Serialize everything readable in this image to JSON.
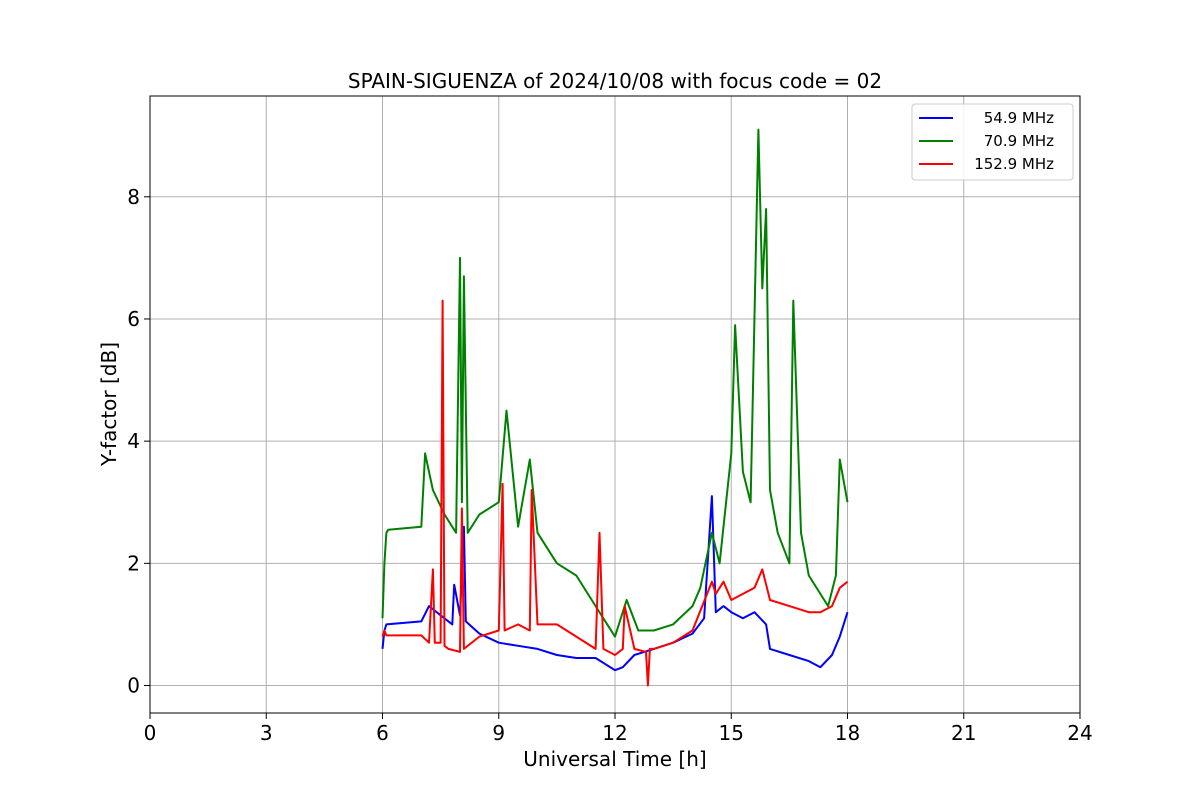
{
  "chart_data": {
    "type": "line",
    "title": "SPAIN-SIGUENZA of 2024/10/08 with focus code = 02",
    "xlabel": "Universal Time [h]",
    "ylabel": "Y-factor [dB]",
    "xlim": [
      0,
      24
    ],
    "ylim": [
      -0.45,
      9.65
    ],
    "xticks": [
      0,
      3,
      6,
      9,
      12,
      15,
      18,
      21,
      24
    ],
    "yticks": [
      0,
      2,
      4,
      6,
      8
    ],
    "grid": true,
    "legend_position": "top-right",
    "series": [
      {
        "name": "54.9 MHz",
        "color": "#0000ff",
        "x": [
          6.0,
          6.05,
          6.1,
          7.0,
          7.2,
          7.5,
          7.8,
          7.85,
          8.0,
          8.1,
          8.15,
          8.5,
          9.0,
          9.5,
          10.0,
          10.5,
          11.0,
          11.5,
          12.0,
          12.2,
          12.5,
          13.0,
          13.5,
          14.0,
          14.3,
          14.5,
          14.6,
          14.8,
          15.0,
          15.3,
          15.6,
          15.9,
          16.0,
          16.5,
          17.0,
          17.3,
          17.6,
          17.8,
          18.0
        ],
        "y": [
          0.6,
          0.9,
          1.0,
          1.05,
          1.3,
          1.15,
          1.0,
          1.65,
          1.15,
          2.6,
          1.05,
          0.85,
          0.7,
          0.65,
          0.6,
          0.5,
          0.45,
          0.45,
          0.25,
          0.3,
          0.5,
          0.6,
          0.7,
          0.85,
          1.1,
          3.1,
          1.2,
          1.3,
          1.2,
          1.1,
          1.2,
          1.0,
          0.6,
          0.5,
          0.4,
          0.3,
          0.5,
          0.8,
          1.2
        ]
      },
      {
        "name": "70.9 MHz",
        "color": "#008000",
        "x": [
          6.0,
          6.05,
          6.1,
          6.15,
          7.0,
          7.1,
          7.3,
          7.6,
          7.9,
          8.0,
          8.05,
          8.1,
          8.2,
          8.5,
          9.0,
          9.2,
          9.5,
          9.8,
          10.0,
          10.5,
          11.0,
          11.5,
          12.0,
          12.3,
          12.6,
          13.0,
          13.5,
          14.0,
          14.2,
          14.5,
          14.7,
          15.0,
          15.1,
          15.3,
          15.5,
          15.7,
          15.8,
          15.9,
          16.0,
          16.2,
          16.5,
          16.6,
          16.8,
          17.0,
          17.3,
          17.5,
          17.7,
          17.8,
          18.0
        ],
        "y": [
          1.1,
          2.0,
          2.5,
          2.55,
          2.6,
          3.8,
          3.2,
          2.8,
          2.5,
          7.0,
          3.0,
          6.7,
          2.5,
          2.8,
          3.0,
          4.5,
          2.6,
          3.7,
          2.5,
          2.0,
          1.8,
          1.3,
          0.8,
          1.4,
          0.9,
          0.9,
          1.0,
          1.3,
          1.6,
          2.5,
          2.0,
          3.8,
          5.9,
          3.5,
          3.0,
          9.1,
          6.5,
          7.8,
          3.2,
          2.5,
          2.0,
          6.3,
          2.5,
          1.8,
          1.5,
          1.3,
          1.8,
          3.7,
          3.0
        ]
      },
      {
        "name": "152.9 MHz",
        "color": "#ff0000",
        "x": [
          6.0,
          6.05,
          6.1,
          7.0,
          7.2,
          7.3,
          7.35,
          7.5,
          7.55,
          7.6,
          7.7,
          8.0,
          8.05,
          8.1,
          8.5,
          9.0,
          9.1,
          9.15,
          9.5,
          9.8,
          9.85,
          10.0,
          10.5,
          11.0,
          11.5,
          11.6,
          11.7,
          12.0,
          12.2,
          12.25,
          12.5,
          12.8,
          12.85,
          12.9,
          13.0,
          13.5,
          14.0,
          14.5,
          14.6,
          14.8,
          15.0,
          15.3,
          15.6,
          15.8,
          16.0,
          16.5,
          17.0,
          17.3,
          17.6,
          17.8,
          18.0
        ],
        "y": [
          0.8,
          0.9,
          0.82,
          0.82,
          0.7,
          1.9,
          0.7,
          0.7,
          6.3,
          0.65,
          0.6,
          0.55,
          2.9,
          0.6,
          0.8,
          0.9,
          3.3,
          0.9,
          1.0,
          0.9,
          3.2,
          1.0,
          1.0,
          0.8,
          0.6,
          2.5,
          0.6,
          0.5,
          0.6,
          1.3,
          0.6,
          0.55,
          0.0,
          0.6,
          0.6,
          0.7,
          0.9,
          1.7,
          1.5,
          1.7,
          1.4,
          1.5,
          1.6,
          1.9,
          1.4,
          1.3,
          1.2,
          1.2,
          1.3,
          1.6,
          1.7
        ]
      }
    ]
  }
}
